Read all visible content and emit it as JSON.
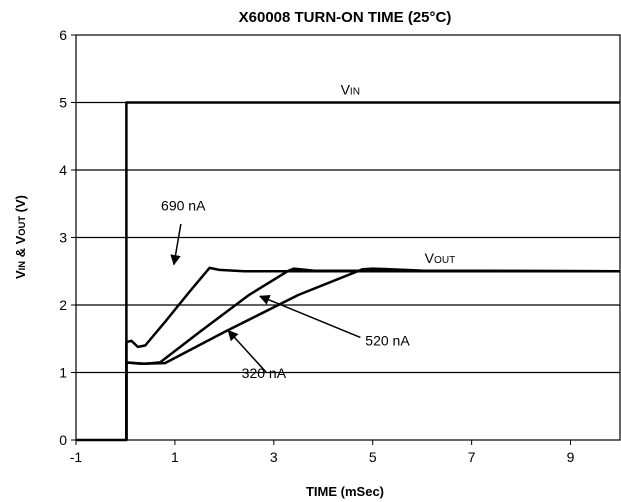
{
  "chart_data": {
    "type": "line",
    "title": "X60008 TURN-ON TIME (25°C)",
    "xlabel": "TIME (mSec)",
    "ylabel": {
      "parts": [
        {
          "text": "V",
          "sub": false
        },
        {
          "text": "IN",
          "sub": true
        },
        {
          "text": " & V",
          "sub": false
        },
        {
          "text": "OUT",
          "sub": true
        },
        {
          "text": " (V)",
          "sub": false
        }
      ]
    },
    "xlim": [
      -1,
      10
    ],
    "ylim": [
      0,
      6
    ],
    "xticks": [
      -1,
      1,
      3,
      5,
      7,
      9
    ],
    "yticks": [
      0,
      1,
      2,
      3,
      4,
      5,
      6
    ],
    "grid": {
      "horizontal": true,
      "vertical": false
    },
    "series": [
      {
        "role": "vin",
        "points": [
          [
            -1,
            0
          ],
          [
            0.02,
            0
          ],
          [
            0.02,
            5.0
          ],
          [
            10,
            5.0
          ]
        ]
      },
      {
        "points": [
          [
            0.02,
            0
          ],
          [
            0.02,
            1.15
          ],
          [
            0.3,
            1.13
          ],
          [
            0.8,
            1.14
          ],
          [
            2.0,
            1.6
          ],
          [
            3.5,
            2.15
          ],
          [
            4.8,
            2.53
          ],
          [
            5.0,
            2.54
          ],
          [
            6.0,
            2.51
          ],
          [
            10,
            2.5
          ]
        ]
      },
      {
        "points": [
          [
            0.02,
            0
          ],
          [
            0.02,
            1.15
          ],
          [
            0.4,
            1.13
          ],
          [
            0.7,
            1.15
          ],
          [
            1.5,
            1.6
          ],
          [
            2.5,
            2.15
          ],
          [
            3.3,
            2.51
          ],
          [
            3.4,
            2.54
          ],
          [
            3.8,
            2.51
          ],
          [
            10,
            2.5
          ]
        ]
      },
      {
        "points": [
          [
            0.02,
            0
          ],
          [
            0.02,
            1.45
          ],
          [
            0.12,
            1.47
          ],
          [
            0.25,
            1.38
          ],
          [
            0.4,
            1.4
          ],
          [
            0.8,
            1.75
          ],
          [
            1.3,
            2.2
          ],
          [
            1.7,
            2.55
          ],
          [
            1.9,
            2.52
          ],
          [
            2.4,
            2.5
          ],
          [
            10,
            2.5
          ]
        ]
      }
    ],
    "annotations": [
      {
        "id": "vin",
        "parts": [
          {
            "text": "V",
            "sub": false
          },
          {
            "text": "IN",
            "sub": true
          }
        ],
        "x": 4.35,
        "y": 5.12,
        "arrow": null
      },
      {
        "id": "vout",
        "parts": [
          {
            "text": "V",
            "sub": false
          },
          {
            "text": "OUT",
            "sub": true
          }
        ],
        "x": 6.05,
        "y": 2.62,
        "arrow": null
      },
      {
        "id": "690",
        "parts": [
          {
            "text": "690 nA",
            "sub": false
          }
        ],
        "x": 0.72,
        "y": 3.4,
        "arrow": {
          "from": [
            1.12,
            3.2
          ],
          "to": [
            0.98,
            2.6
          ]
        }
      },
      {
        "id": "520",
        "parts": [
          {
            "text": "520 nA",
            "sub": false
          }
        ],
        "x": 4.85,
        "y": 1.4,
        "arrow": {
          "from": [
            4.75,
            1.52
          ],
          "to": [
            2.72,
            2.13
          ]
        }
      },
      {
        "id": "320",
        "parts": [
          {
            "text": "320 nA",
            "sub": false
          }
        ],
        "x": 2.35,
        "y": 0.92,
        "arrow": {
          "from": [
            2.85,
            1.0
          ],
          "to": [
            2.08,
            1.62
          ]
        }
      }
    ]
  }
}
